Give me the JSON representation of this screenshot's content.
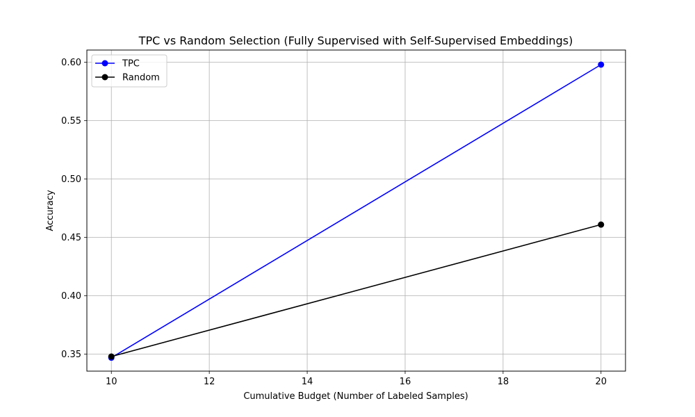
{
  "chart_data": {
    "type": "line",
    "title": "TPC vs Random Selection (Fully Supervised with Self-Supervised Embeddings)",
    "xlabel": "Cumulative Budget (Number of Labeled Samples)",
    "ylabel": "Accuracy",
    "xlim": [
      9.5,
      20.5
    ],
    "ylim": [
      0.3355,
      0.6105
    ],
    "xticks": [
      "10",
      "12",
      "14",
      "16",
      "18",
      "20"
    ],
    "xtick_values": [
      10,
      12,
      14,
      16,
      18,
      20
    ],
    "yticks": [
      "0.35",
      "0.40",
      "0.45",
      "0.50",
      "0.55",
      "0.60"
    ],
    "ytick_values": [
      0.35,
      0.4,
      0.45,
      0.5,
      0.55,
      0.6
    ],
    "grid": true,
    "legend_position": "top-left",
    "x": [
      10,
      20
    ],
    "series": [
      {
        "name": "TPC",
        "values": [
          0.347,
          0.598
        ],
        "color": "#0000ff",
        "marker": "circle"
      },
      {
        "name": "Random",
        "values": [
          0.348,
          0.461
        ],
        "color": "#000000",
        "marker": "circle"
      }
    ]
  }
}
